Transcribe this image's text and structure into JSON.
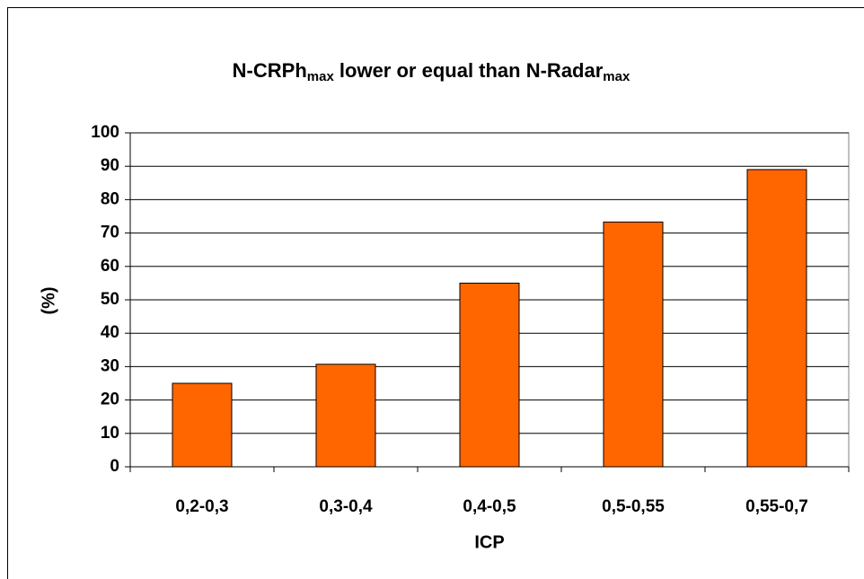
{
  "chart_data": {
    "type": "bar",
    "title": {
      "text1": "N-CRPh",
      "sub1": "max",
      "text2": " lower or equal than N-Radar",
      "sub2": "max"
    },
    "x_label": "ICP",
    "y_label": "(%)",
    "categories": [
      "0,2-0,3",
      "0,3-0,4",
      "0,4-0,5",
      "0,5-0,55",
      "0,55-0,7"
    ],
    "values": [
      25,
      30.7,
      55,
      73.3,
      89
    ],
    "color": "#ff6600",
    "ylim": [
      0,
      100
    ],
    "yticks": [
      0,
      10,
      20,
      30,
      40,
      50,
      60,
      70,
      80,
      90,
      100
    ],
    "grid": true
  }
}
